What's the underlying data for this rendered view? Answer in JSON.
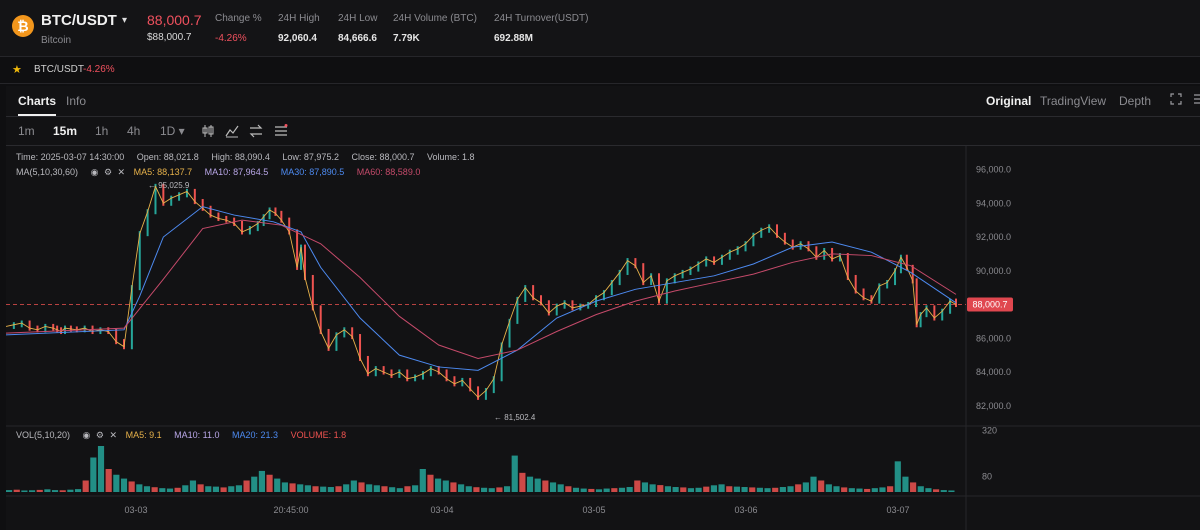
{
  "header": {
    "coin_icon": "bitcoin-icon",
    "coin_symbol": "₿",
    "pair": "BTC/USDT",
    "caret": "▾",
    "coin_name": "Bitcoin",
    "price": "88,000.7",
    "price_sub": "$88,000.7",
    "stats": [
      {
        "label": "Change %",
        "value": "-4.26%",
        "negative": true
      },
      {
        "label": "24H High",
        "value": "92,060.4"
      },
      {
        "label": "24H Low",
        "value": "84,666.6"
      },
      {
        "label": "24H Volume (BTC)",
        "value": "7.79K"
      },
      {
        "label": "24H Turnover(USDT)",
        "value": "692.88M"
      }
    ]
  },
  "favorites": {
    "star_icon": "star-icon",
    "pair": "BTC/USDT",
    "change": "-4.26%"
  },
  "tabs": [
    {
      "label": "Charts"
    },
    {
      "label": "Info"
    }
  ],
  "views": [
    {
      "label": "Original"
    },
    {
      "label": "TradingView"
    },
    {
      "label": "Depth"
    }
  ],
  "intervals": [
    {
      "label": "1m"
    },
    {
      "label": "15m"
    },
    {
      "label": "1h"
    },
    {
      "label": "4h"
    },
    {
      "label": "1D ▾"
    }
  ],
  "info_line": {
    "time": "Time: 2025-03-07 14:30:00",
    "open": "Open: 88,021.8",
    "high": "High: 88,090.4",
    "low": "Low: 87,975.2",
    "close": "Close: 88,000.7",
    "volume": "Volume: 1.8"
  },
  "ma_line": {
    "label": "MA(5,10,30,60)",
    "ma5": "MA5: 88,137.7",
    "ma10": "MA10: 87,964.5",
    "ma30": "MA30: 87,890.5",
    "ma60": "MA60: 88,589.0"
  },
  "vol_line": {
    "label": "VOL(5,10,20)",
    "ma5": "MA5: 9.1",
    "ma10": "MA10: 11.0",
    "ma20": "MA20: 21.3",
    "volume": "VOLUME: 1.8"
  },
  "colors": {
    "up": "#26a69a",
    "down": "#ef5350",
    "ma5": "#e6b14a",
    "ma10": "#b9a7e8",
    "ma30": "#4d8af0",
    "ma60": "#c54a6a",
    "accent_negative": "#f0515e"
  },
  "chart_data": {
    "type": "line",
    "price_axis": {
      "ticks": [
        "96,000.0",
        "94,000.0",
        "92,000.0",
        "90,000.0",
        "88,000.0",
        "86,000.0",
        "84,000.0",
        "82,000.0"
      ],
      "ylim": [
        80800,
        96800
      ]
    },
    "volume_axis": {
      "ticks": [
        "320",
        "80"
      ]
    },
    "time_labels": [
      "03-03",
      "20:45:00",
      "03-04",
      "03-05",
      "03-06",
      "03-07"
    ],
    "current_price": "88,000.7",
    "current_price_value": 88000.7,
    "annotations": [
      {
        "text": "95,025.9",
        "value": 95025.9
      },
      {
        "text": "81,502.4",
        "value": 81502.4
      }
    ],
    "series": [
      {
        "name": "Price",
        "x": [
          0,
          8,
          16,
          24,
          32,
          40,
          48,
          52,
          56,
          60,
          66,
          72,
          80,
          88,
          96,
          104,
          112,
          120,
          128,
          136,
          144,
          152,
          160,
          168,
          176,
          184,
          192,
          200,
          208,
          216,
          224,
          232,
          240,
          248,
          256,
          262,
          268,
          274,
          280,
          288,
          296,
          300,
          304,
          312,
          320,
          328,
          336,
          344,
          352,
          360,
          368,
          376,
          384,
          392,
          400,
          408,
          416,
          424,
          432,
          440,
          448,
          456,
          464,
          472,
          480,
          488,
          496,
          504,
          512,
          520,
          528,
          536,
          544,
          552,
          560,
          568,
          576,
          584,
          592,
          600,
          608,
          616,
          624,
          632,
          640,
          648,
          656,
          664,
          672,
          680,
          688,
          696,
          704,
          712,
          720,
          728,
          736,
          744,
          752,
          760,
          768,
          776,
          784,
          792,
          800,
          808,
          816,
          824,
          832,
          840,
          848,
          856,
          864,
          872,
          880,
          888,
          896,
          904,
          910,
          916,
          922,
          926,
          930,
          936,
          944,
          952,
          960,
          966
        ],
        "y": [
          86700,
          86800,
          86900,
          86600,
          86500,
          86700,
          86600,
          86500,
          86400,
          86600,
          86550,
          86500,
          86600,
          86400,
          86500,
          86400,
          85800,
          85500,
          89000,
          92200,
          93500,
          95000,
          94000,
          94300,
          94500,
          94700,
          94100,
          93700,
          93300,
          93100,
          93000,
          92800,
          92300,
          92500,
          92800,
          93200,
          93600,
          93400,
          93000,
          92300,
          90200,
          91400,
          89600,
          87800,
          86400,
          85400,
          86200,
          86500,
          86100,
          84800,
          83900,
          84200,
          84000,
          83800,
          84000,
          83600,
          83700,
          83900,
          84200,
          84000,
          83600,
          83300,
          83500,
          83000,
          82500,
          82900,
          83600,
          85600,
          87000,
          88300,
          89000,
          88400,
          88100,
          87500,
          87900,
          88100,
          87800,
          87900,
          88000,
          88400,
          88700,
          89300,
          89900,
          90600,
          90300,
          89300,
          89700,
          88200,
          89400,
          89700,
          89900,
          90100,
          90400,
          90700,
          90500,
          90800,
          91100,
          91300,
          91600,
          92100,
          92400,
          92600,
          92100,
          91700,
          91400,
          91600,
          91300,
          90800,
          91200,
          90700,
          90900,
          89600,
          88800,
          88400,
          88200,
          89100,
          89300,
          90000,
          90800,
          90200,
          89400,
          86800,
          87400,
          87800,
          87200,
          87600,
          88200,
          88000
        ]
      },
      {
        "name": "MA30",
        "x": [
          0,
          120,
          136,
          160,
          200,
          232,
          272,
          300,
          320,
          360,
          400,
          440,
          480,
          520,
          560,
          600,
          640,
          680,
          720,
          760,
          800,
          840,
          880,
          920,
          966
        ],
        "y": [
          86200,
          86500,
          88500,
          92000,
          93800,
          93300,
          92900,
          92300,
          90200,
          87200,
          85000,
          84300,
          84100,
          85300,
          87200,
          88200,
          88900,
          89300,
          89700,
          90400,
          91400,
          91700,
          91100,
          89900,
          88100
        ]
      },
      {
        "name": "MA60",
        "x": [
          0,
          120,
          160,
          200,
          240,
          280,
          320,
          360,
          400,
          440,
          480,
          520,
          560,
          600,
          640,
          680,
          720,
          760,
          800,
          840,
          880,
          920,
          966
        ],
        "y": [
          86300,
          86600,
          89500,
          92500,
          93000,
          92700,
          91600,
          89600,
          87300,
          85600,
          84800,
          85300,
          86400,
          87400,
          88200,
          88800,
          89300,
          89800,
          90500,
          91000,
          90900,
          90300,
          88600
        ]
      },
      {
        "name": "Volume",
        "values": [
          10,
          12,
          8,
          9,
          11,
          14,
          10,
          9,
          12,
          15,
          60,
          180,
          240,
          120,
          90,
          70,
          55,
          40,
          30,
          25,
          20,
          18,
          22,
          35,
          60,
          40,
          30,
          28,
          24,
          30,
          35,
          60,
          80,
          110,
          90,
          70,
          50,
          45,
          40,
          35,
          30,
          28,
          26,
          30,
          40,
          60,
          50,
          40,
          35,
          30,
          25,
          20,
          30,
          35,
          120,
          90,
          70,
          60,
          50,
          40,
          30,
          25,
          22,
          20,
          24,
          30,
          190,
          100,
          80,
          70,
          60,
          50,
          40,
          30,
          22,
          18,
          16,
          14,
          18,
          20,
          22,
          26,
          60,
          50,
          40,
          36,
          30,
          26,
          24,
          20,
          22,
          28,
          35,
          40,
          30,
          28,
          26,
          24,
          22,
          20,
          22,
          26,
          30,
          40,
          50,
          80,
          60,
          40,
          30,
          24,
          20,
          18,
          16,
          20,
          24,
          30,
          160,
          80,
          50,
          30,
          20,
          14,
          10,
          8
        ]
      }
    ]
  }
}
